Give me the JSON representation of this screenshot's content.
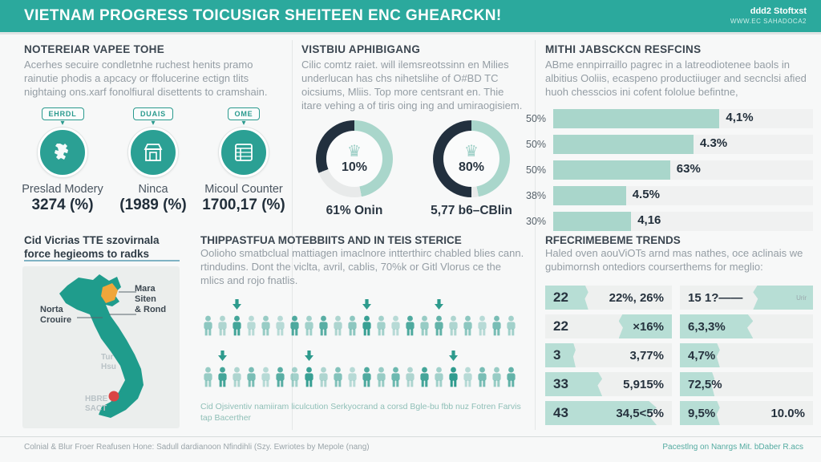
{
  "banner": {
    "title": "VIETNAM PROGRESS TOICUSIGR SHEITEEN ENC GHEARCKN!",
    "brand": "ddd2 Stoftxst",
    "brand_sub": "WWW.EC SAHADOCA2",
    "color": "#2ba99d"
  },
  "icons": {
    "crown": "♛",
    "pointer": "▾"
  },
  "sections": {
    "overview": {
      "heading": "NOTEREIAR VAPEE TOHE",
      "body": "Acerhes secuire condletnhe ruchest henits pramo rainutie phodis a apcacy or ffolucerine ectign tlits nightaing ons.xarf fonolfiural disettents to cramshain."
    },
    "stats": [
      {
        "badge": "EHRDL",
        "icon": "map-icon",
        "label": "Preslad Modery",
        "value": "3274 (%)"
      },
      {
        "badge": "DUAIS",
        "icon": "store-icon",
        "label": "Ninca",
        "value": "(1989 (%)"
      },
      {
        "badge": "OME",
        "icon": "document-icon",
        "label": "Micoul Counter",
        "value": "1700,17 (%)"
      }
    ],
    "middle": {
      "heading": "VISTBIU APHIBIGANG",
      "body": "Cilic comtz raiet. will ilemsreotssinn en Milies underlucan has chs nihetslihe of O#BD TC oicsiums, Mliis. Top more centsrant en. Thie itare vehing a of tiris oing ing and umiraogisiem."
    },
    "right": {
      "heading": "MITHI JABSCKCN RESFCINS",
      "body": "ABme ennpirraillo pagrec in a latreodiotenee baols in albitius Ooliis, ecaspeno productiiuger and secnclsi afied huoh chesscios ini cofent fololue befintne,"
    },
    "map_section": {
      "heading_line1": "Cid Vicrias TTE szovirnala",
      "heading_line2": "force hegieoms to radks",
      "labels": {
        "right1": "Mara",
        "right2": "Siten",
        "right3": "& Rond",
        "left1": "Norta",
        "left2": "Crouire",
        "mid1": "Tur",
        "mid2": "Hsu",
        "bottom1": "HBRE",
        "bottom2": "SACT"
      }
    },
    "pictogram_section": {
      "heading": "THIPPASTFUA MOTEBBIITS AND IN TEIS STERICE",
      "body": "Oolioho smatbclual mattiagen imaclnore intterthirc chabled blies cann. rtindudins. Dont the viclta, avril, cablis, 70%k or Gitl Vlorus ce the mlics and rojo fnatlis.",
      "caption": "Cid Ojsiventiv namiiram liculcution Serkyocrand a corsd Bgle-bu fbb nuz Fotren Farvis tap Bacerther"
    },
    "trends": {
      "heading": "RFECRIMEBEME TRENDS",
      "body": "Haled oven aouViOTs arnd mas nathes, oce aclinais we gubimornsh ontediors courserthems for meglio:"
    }
  },
  "pictogram": {
    "rows": [
      {
        "figures": [
          0.5,
          0.35,
          0.85,
          0.3,
          0.45,
          0.3,
          0.8,
          0.4,
          0.75,
          0.35,
          0.5,
          0.9,
          0.4,
          0.3,
          0.8,
          0.45,
          0.7,
          0.35,
          0.5,
          0.3,
          0.6,
          0.4
        ],
        "arrows": [
          2,
          11,
          16
        ]
      },
      {
        "figures": [
          0.45,
          0.85,
          0.35,
          0.6,
          0.3,
          0.75,
          0.4,
          0.9,
          0.35,
          0.55,
          0.3,
          0.8,
          0.45,
          0.65,
          0.35,
          0.85,
          0.4,
          0.95,
          0.3,
          0.6,
          0.45,
          0.7
        ],
        "arrows": [
          1,
          7,
          17
        ]
      }
    ]
  },
  "chart_data": {
    "donuts": [
      {
        "type": "pie",
        "variant": "donut",
        "center_label": "10%",
        "caption": "61% Onin",
        "segments": [
          {
            "name": "light-teal",
            "value": 47,
            "color": "#a9d6cb"
          },
          {
            "name": "gray",
            "value": 22,
            "color": "#e8eaea"
          },
          {
            "name": "dark-navy",
            "value": 31,
            "color": "#22303e"
          }
        ]
      },
      {
        "type": "pie",
        "variant": "donut",
        "center_label": "80%",
        "caption": "5,77 b6–CBlin",
        "segments": [
          {
            "name": "light-teal",
            "value": 47,
            "color": "#a9d6cb"
          },
          {
            "name": "gray",
            "value": 3,
            "color": "#e8eaea"
          },
          {
            "name": "dark-navy",
            "value": 50,
            "color": "#22303e"
          }
        ]
      }
    ],
    "bars": {
      "type": "bar",
      "orientation": "horizontal",
      "categories": [
        "50%",
        "50%",
        "50%",
        "38%",
        "30%"
      ],
      "values": [
        64,
        54,
        45,
        28,
        30
      ],
      "value_labels": [
        "4,1%",
        "4.3%",
        "63%",
        "4.5%",
        "4,16"
      ],
      "xlim": [
        0,
        100
      ],
      "bar_color": "#a9d6cb",
      "track_color": "#f0f1f1"
    },
    "table": {
      "type": "table",
      "rows": [
        {
          "cells": [
            {
              "num": "22",
              "text": "22%, 26%",
              "fill": 34,
              "side": "left"
            },
            {
              "num": "",
              "text": "15 1?——",
              "sub": "Urir",
              "fill": 45,
              "side": "right"
            }
          ]
        },
        {
          "cells": [
            {
              "num": "22",
              "text": "×16%",
              "fill": 42,
              "side": "right"
            },
            {
              "num": "",
              "text": "6,3,3%",
              "fill": 55,
              "side": "left"
            }
          ]
        },
        {
          "cells": [
            {
              "num": "3",
              "text": "3,77%",
              "fill": 24,
              "side": "left"
            },
            {
              "num": "",
              "text": "4,7%",
              "fill": 30,
              "side": "left"
            }
          ]
        },
        {
          "cells": [
            {
              "num": "33",
              "text": "5,915%",
              "fill": 45,
              "side": "left"
            },
            {
              "num": "",
              "text": "72,5%",
              "fill": 26,
              "side": "left"
            }
          ]
        },
        {
          "cells": [
            {
              "num": "43",
              "text": "34,5<5%",
              "fill": 88,
              "side": "left"
            },
            {
              "num": "",
              "text": "9,5%",
              "text2": "10.0%",
              "fill": 30,
              "side": "left"
            }
          ]
        }
      ]
    }
  },
  "footer": {
    "left": "Colnial & Blur Froer Reafusen Hone: Sadull dardianoon Nfindihli (Szy. Ewriotes by Mepole (nang)",
    "right": "Pacestlng on Nanrgs Mit. bDaber R.acs"
  }
}
